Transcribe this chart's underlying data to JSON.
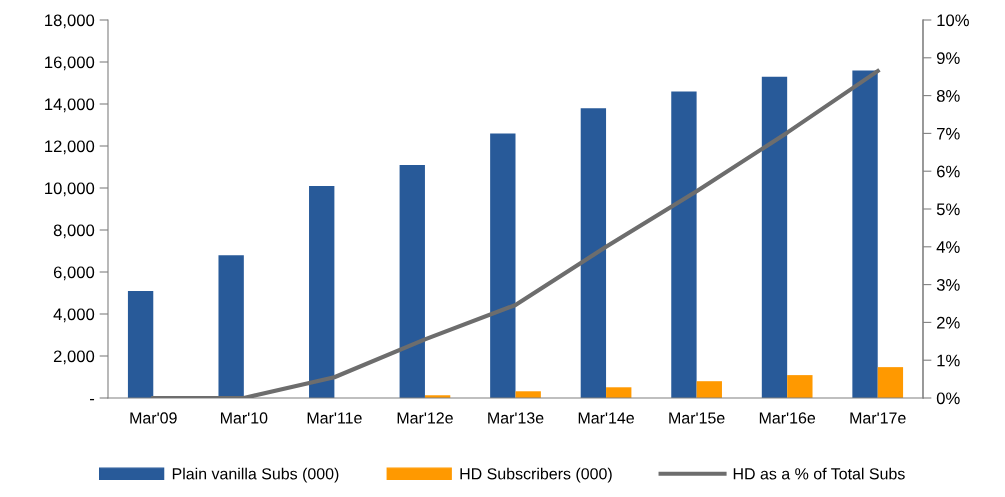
{
  "chart_data": {
    "type": "bar",
    "categories": [
      "Mar'09",
      "Mar'10",
      "Mar'11e",
      "Mar'12e",
      "Mar'13e",
      "Mar'14e",
      "Mar'15e",
      "Mar'16e",
      "Mar'17e"
    ],
    "series": [
      {
        "name": "Plain vanilla Subs (000)",
        "color": "#285a99",
        "values": [
          5100,
          6800,
          10100,
          11100,
          12600,
          13800,
          14600,
          15300,
          15600
        ]
      },
      {
        "name": "HD Subscribers (000)",
        "color": "#ff9900",
        "values": [
          0,
          0,
          0,
          130,
          320,
          510,
          800,
          1090,
          1470
        ]
      },
      {
        "name": "HD as a % of Total Subs",
        "type": "line",
        "axis": "y2",
        "color": "#6d6d6d",
        "values": [
          0,
          0,
          0.55,
          1.55,
          2.46,
          4.0,
          5.47,
          7.02,
          8.65
        ]
      }
    ],
    "ylim": [
      0,
      18000
    ],
    "yticks": [
      {
        "value": 0,
        "label": "-"
      },
      {
        "value": 2000,
        "label": "2,000"
      },
      {
        "value": 4000,
        "label": "4,000"
      },
      {
        "value": 6000,
        "label": "6,000"
      },
      {
        "value": 8000,
        "label": "8,000"
      },
      {
        "value": 10000,
        "label": "10,000"
      },
      {
        "value": 12000,
        "label": "12,000"
      },
      {
        "value": 14000,
        "label": "14,000"
      },
      {
        "value": 16000,
        "label": "16,000"
      },
      {
        "value": 18000,
        "label": "18,000"
      }
    ],
    "y2lim": [
      0,
      10
    ],
    "y2ticks": [
      {
        "value": 0,
        "label": "0%"
      },
      {
        "value": 1,
        "label": "1%"
      },
      {
        "value": 2,
        "label": "2%"
      },
      {
        "value": 3,
        "label": "3%"
      },
      {
        "value": 4,
        "label": "4%"
      },
      {
        "value": 5,
        "label": "5%"
      },
      {
        "value": 6,
        "label": "6%"
      },
      {
        "value": 7,
        "label": "7%"
      },
      {
        "value": 8,
        "label": "8%"
      },
      {
        "value": 9,
        "label": "9%"
      },
      {
        "value": 10,
        "label": "10%"
      }
    ],
    "grid": false,
    "legend": "bottom",
    "line_style": "solid",
    "marker": "none"
  }
}
